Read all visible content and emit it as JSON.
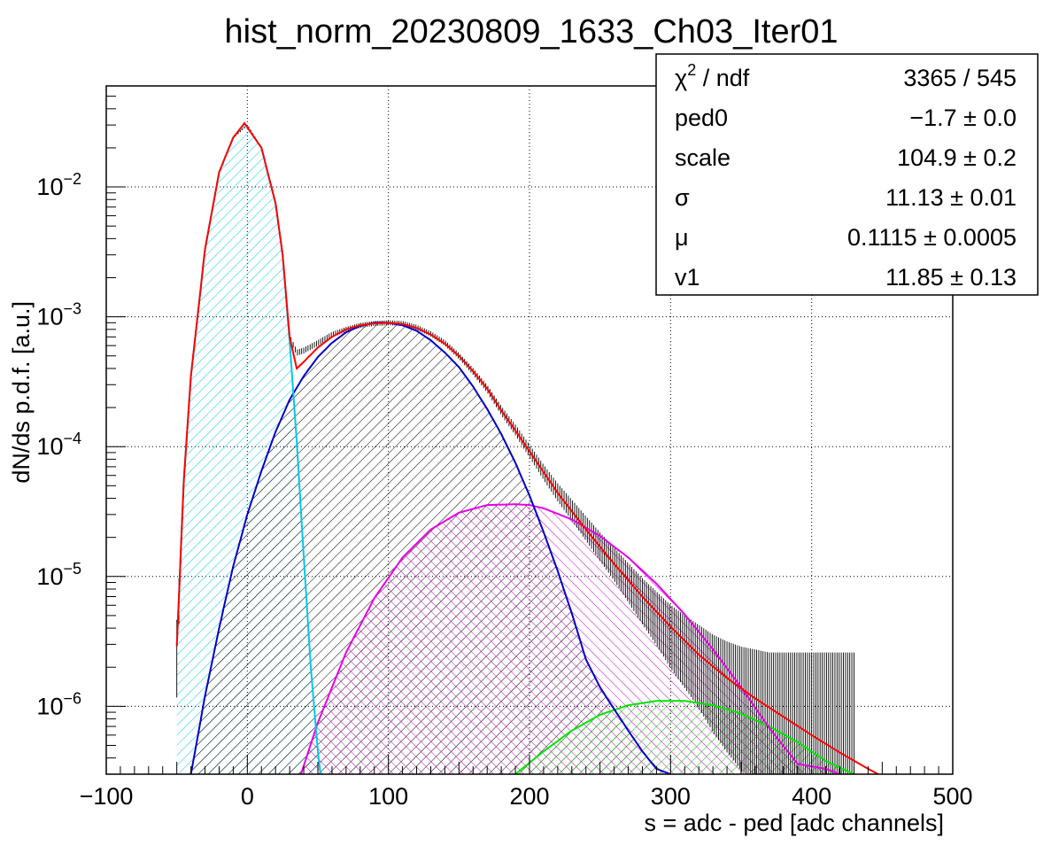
{
  "chart_data": {
    "type": "line",
    "title": "hist_norm_20230809_1633_Ch03_Iter01",
    "xlabel": "s = adc - ped [adc channels]",
    "ylabel": "dN/ds p.d.f. [a.u.]",
    "xlim": [
      -100,
      500
    ],
    "ylim": [
      3e-07,
      0.06
    ],
    "yscale": "log",
    "grid": true,
    "x_ticks": [
      -100,
      0,
      100,
      200,
      300,
      400,
      500
    ],
    "x_tick_labels": [
      "−100",
      "0",
      "100",
      "200",
      "300",
      "400",
      "500"
    ],
    "y_ticks": [
      1e-06,
      1e-05,
      0.0001,
      0.001,
      0.01
    ],
    "y_tick_labels": [
      {
        "base": "10",
        "exp": "−6"
      },
      {
        "base": "10",
        "exp": "−5"
      },
      {
        "base": "10",
        "exp": "−4"
      },
      {
        "base": "10",
        "exp": "−3"
      },
      {
        "base": "10",
        "exp": "−2"
      }
    ],
    "stats_box": {
      "rows": [
        {
          "label_base": "χ",
          "label_sup": "2",
          "label_rest": " / ndf",
          "value": "3365 / 545"
        },
        {
          "label_base": "ped0",
          "value": "−1.7 ± 0.0"
        },
        {
          "label_base": "scale",
          "value": "104.9 ± 0.2"
        },
        {
          "label_base": "σ",
          "value": "11.13 ± 0.01"
        },
        {
          "label_base": "μ",
          "value": "0.1115 ± 0.0005"
        },
        {
          "label_base": "v1",
          "value": "11.85 ± 0.13"
        }
      ]
    },
    "data_histogram": {
      "color": "#000000",
      "x": [
        -50,
        -45,
        -40,
        -30,
        -20,
        -10,
        0,
        10,
        20,
        25,
        30,
        35,
        40,
        50,
        60,
        70,
        80,
        90,
        100,
        110,
        120,
        130,
        140,
        150,
        160,
        170,
        180,
        190,
        200,
        210,
        220,
        230,
        240,
        250,
        260,
        270,
        280,
        290,
        300,
        310,
        320,
        330,
        340,
        350,
        360,
        370,
        380,
        390,
        400,
        410,
        420,
        430
      ],
      "y": [
        2.9e-06,
        5.5e-05,
        0.00035,
        0.0033,
        0.013,
        0.024,
        0.03,
        0.02,
        0.0075,
        0.003,
        0.0007,
        0.00053,
        0.00055,
        0.00063,
        0.00073,
        0.0008,
        0.00086,
        0.00089,
        0.0009,
        0.00089,
        0.00083,
        0.00074,
        0.00063,
        0.0005,
        0.00038,
        0.00028,
        0.00019,
        0.000135,
        9.3e-05,
        6.4e-05,
        4.5e-05,
        3.3e-05,
        2.4e-05,
        1.75e-05,
        1.3e-05,
        9.5e-06,
        7e-06,
        5.3e-06,
        4e-06,
        3.2e-06,
        2.6e-06,
        2.1e-06,
        1.8e-06,
        1.6e-06,
        1.5e-06,
        1.4e-06,
        1.4e-06,
        1.4e-06,
        1.4e-06,
        1.4e-06,
        1.4e-06,
        1.4e-06
      ]
    },
    "series": [
      {
        "color": "#ff0000",
        "fill": "none",
        "x": [
          -50,
          -45,
          -40,
          -30,
          -20,
          -10,
          -2,
          10,
          20,
          25,
          30,
          35,
          40,
          50,
          60,
          70,
          80,
          90,
          100,
          110,
          120,
          130,
          140,
          150,
          160,
          170,
          180,
          190,
          200,
          220,
          240,
          260,
          280,
          300,
          320,
          340,
          360,
          380,
          400,
          420,
          440,
          455
        ],
        "y": [
          2.9e-06,
          5.5e-05,
          0.00035,
          0.0033,
          0.013,
          0.024,
          0.031,
          0.02,
          0.0075,
          0.003,
          0.0007,
          0.0004,
          0.00045,
          0.00058,
          0.0007,
          0.0008,
          0.00086,
          0.00089,
          0.0009,
          0.00088,
          0.00082,
          0.00073,
          0.00062,
          0.0005,
          0.00038,
          0.00028,
          0.00019,
          0.000133,
          9.2e-05,
          4.4e-05,
          2.3e-05,
          1.25e-05,
          7e-06,
          4.1e-06,
          2.5e-06,
          1.65e-06,
          1.15e-06,
          8.3e-07,
          6e-07,
          4.4e-07,
          3.3e-07,
          2.7e-07
        ]
      },
      {
        "color": "#00c8e6",
        "fill": "#00c8e6",
        "x": [
          -50,
          -45,
          -40,
          -30,
          -20,
          -10,
          -2,
          10,
          20,
          25,
          30,
          35,
          40,
          45,
          50,
          55
        ],
        "y": [
          2.9e-06,
          5.5e-05,
          0.00035,
          0.0033,
          0.013,
          0.024,
          0.031,
          0.02,
          0.0075,
          0.003,
          0.00065,
          0.00011,
          1.4e-05,
          2e-06,
          4.5e-07,
          1.5e-07
        ]
      },
      {
        "color": "#0000cc",
        "fill": "#000000",
        "x": [
          -40,
          -30,
          -20,
          -10,
          0,
          10,
          20,
          30,
          40,
          50,
          60,
          70,
          80,
          90,
          100,
          110,
          120,
          130,
          140,
          150,
          160,
          170,
          180,
          190,
          200,
          210,
          220,
          230,
          240,
          250,
          260,
          270,
          280,
          290,
          300,
          310,
          320
        ],
        "y": [
          3e-07,
          1.2e-06,
          4e-06,
          1.2e-05,
          3e-05,
          6.5e-05,
          0.00013,
          0.00023,
          0.00035,
          0.00049,
          0.00063,
          0.00076,
          0.00085,
          0.0009,
          0.0009,
          0.00086,
          0.00078,
          0.00066,
          0.00053,
          0.00041,
          0.00029,
          0.000195,
          0.000125,
          7.5e-05,
          4.2e-05,
          2.2e-05,
          1.1e-05,
          5.2e-06,
          2.3e-06,
          1.4e-06,
          9.5e-07,
          6.5e-07,
          4.5e-07,
          3.3e-07,
          3e-07,
          2.7e-07,
          2.5e-07
        ]
      },
      {
        "color": "#e600e6",
        "fill": "#cc00cc",
        "x": [
          38,
          50,
          70,
          90,
          110,
          130,
          150,
          170,
          190,
          200,
          210,
          230,
          250,
          270,
          290,
          310,
          330,
          350,
          370,
          390,
          410,
          420
        ],
        "y": [
          3e-07,
          7.5e-07,
          2.6e-06,
          6.8e-06,
          1.4e-05,
          2.3e-05,
          3.1e-05,
          3.55e-05,
          3.6e-05,
          3.55e-05,
          3.35e-05,
          2.75e-05,
          2.05e-05,
          1.4e-05,
          8.8e-06,
          5.1e-06,
          2.75e-06,
          1.4e-06,
          6.8e-07,
          3.6e-07,
          3.3e-07,
          3e-07
        ]
      },
      {
        "color": "#00e600",
        "fill": "#00c800",
        "x": [
          190,
          210,
          230,
          250,
          270,
          290,
          310,
          330,
          350,
          370,
          390,
          410,
          430
        ],
        "y": [
          3e-07,
          4.5e-07,
          6.5e-07,
          8.6e-07,
          1.02e-06,
          1.1e-06,
          1.1e-06,
          1.02e-06,
          8.8e-07,
          7e-07,
          5.3e-07,
          3.8e-07,
          3e-07
        ]
      }
    ]
  }
}
